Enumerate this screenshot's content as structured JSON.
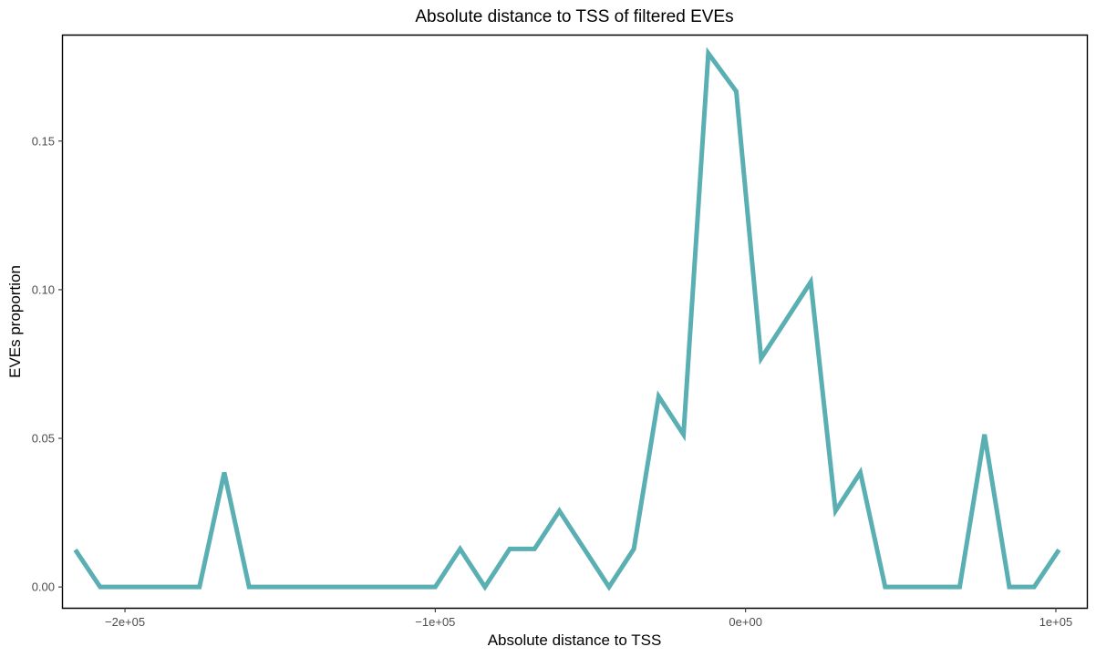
{
  "chart_data": {
    "type": "line",
    "title": "Absolute distance to TSS of filtered EVEs",
    "xlabel": "Absolute distance to TSS",
    "ylabel": "EVEs proportion",
    "xlim": [
      -220000,
      110000
    ],
    "ylim": [
      -0.007,
      0.1855
    ],
    "x_ticks": [
      -200000,
      -100000,
      0,
      100000
    ],
    "x_tick_labels": [
      "−2e+05",
      "−1e+05",
      "0e+00",
      "1e+05"
    ],
    "y_ticks": [
      0,
      0.05,
      0.1,
      0.15
    ],
    "y_tick_labels": [
      "0.00",
      "0.05",
      "0.10",
      "0.15"
    ],
    "grid": false,
    "legend": "none",
    "series": [
      {
        "color": "#5aafb2",
        "x": [
          -216000,
          -208000,
          -200000,
          -192000,
          -184000,
          -176000,
          -168000,
          -160000,
          -152000,
          -144000,
          -136000,
          -128000,
          -120000,
          -112000,
          -104000,
          -100000,
          -92000,
          -84000,
          -76000,
          -68000,
          -60000,
          -52000,
          -44000,
          -36000,
          -28000,
          -20000,
          -12000,
          -3000,
          5000,
          13000,
          21000,
          29000,
          37000,
          45000,
          53000,
          61000,
          69000,
          77000,
          85000,
          93000,
          101000
        ],
        "values": [
          0.0125,
          0.0,
          0.0,
          0.0,
          0.0,
          0.0,
          0.0385,
          0.0,
          0.0,
          0.0,
          0.0,
          0.0,
          0.0,
          0.0,
          0.0,
          0.0,
          0.0128,
          0.0,
          0.0128,
          0.0128,
          0.0256,
          0.0128,
          0.0,
          0.0128,
          0.0641,
          0.0513,
          0.1795,
          0.1667,
          0.0769,
          0.0897,
          0.1026,
          0.0256,
          0.0385,
          0.0,
          0.0,
          0.0,
          0.0,
          0.0513,
          0.0,
          0.0,
          0.0125
        ]
      }
    ]
  }
}
